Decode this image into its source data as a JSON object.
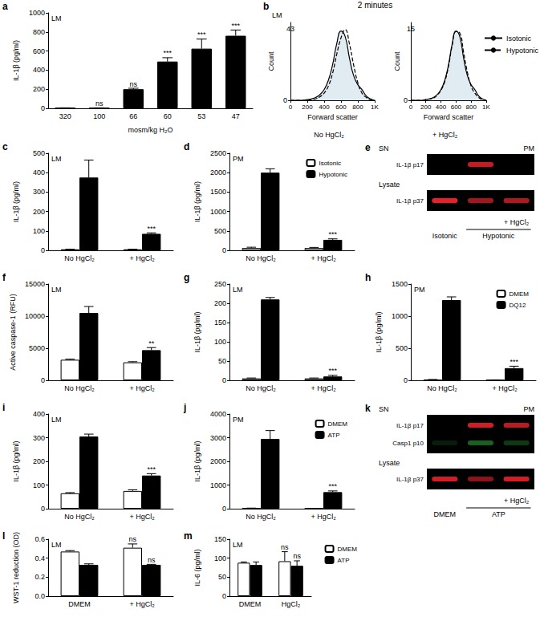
{
  "chart_data": [
    {
      "panel": "a",
      "type": "bar",
      "title": "LM",
      "xlabel": "mosm/kg H₂O",
      "ylabel": "IL-1β (pg/ml)",
      "categories": [
        "320",
        "100",
        "66",
        "60",
        "53",
        "47"
      ],
      "ylim": [
        0,
        1000
      ],
      "yticks": [
        0,
        200,
        400,
        600,
        800,
        1000
      ],
      "grid": false,
      "series": [
        {
          "color": "#000000",
          "values": [
            4,
            4,
            200,
            490,
            625,
            760
          ],
          "errors": [
            1,
            1,
            10,
            40,
            100,
            60
          ],
          "significance": [
            null,
            "ns",
            "ns",
            "***",
            "***",
            "***"
          ]
        }
      ]
    },
    {
      "panel": "b",
      "type": "line",
      "heading": "2 minutes",
      "title": "LM",
      "subtitle": "No HgCl₂",
      "annotations": [
        "43"
      ],
      "xlabel": "Forward scatter",
      "ylabel": "Count",
      "x": [
        0,
        50,
        100,
        150,
        200,
        250,
        300,
        350,
        400,
        450,
        500,
        550,
        600,
        650,
        700,
        750,
        800,
        850,
        900,
        950,
        1000
      ],
      "xlim": [
        0,
        1000
      ],
      "xticks": [
        0,
        200,
        400,
        600,
        800,
        {
          "value": 1000,
          "label": "1K"
        }
      ],
      "ylim": [
        0,
        110
      ],
      "yticks": [
        0
      ],
      "grid": false,
      "series": [
        {
          "color": "#000000",
          "line_style": "solid",
          "values": [
            0,
            0,
            0,
            0,
            1,
            2,
            4,
            8,
            15,
            28,
            50,
            80,
            98,
            90,
            60,
            35,
            22,
            15,
            6,
            2,
            0
          ]
        },
        {
          "color": "#000000",
          "line_style": "dashed",
          "values": [
            0,
            0,
            0,
            0,
            0,
            1,
            2,
            5,
            10,
            20,
            38,
            65,
            88,
            100,
            80,
            50,
            25,
            10,
            4,
            1,
            0
          ]
        }
      ]
    },
    {
      "type": "line",
      "subtitle": "+ HgCl₂",
      "annotations": [
        "15"
      ],
      "xlabel": "Forward scatter",
      "ylabel": "Count",
      "x": [
        0,
        50,
        100,
        150,
        200,
        250,
        300,
        350,
        400,
        450,
        500,
        550,
        600,
        650,
        700,
        750,
        800,
        850,
        900,
        950,
        1000
      ],
      "xlim": [
        0,
        1000
      ],
      "xticks": [
        0,
        200,
        400,
        600,
        800,
        {
          "value": 1000,
          "label": "1K"
        }
      ],
      "ylim": [
        0,
        110
      ],
      "yticks": [
        0
      ],
      "grid": false,
      "legend": "right",
      "series": [
        {
          "name": "Isotonic",
          "color": "#000000",
          "line_style": "solid",
          "values": [
            0,
            0,
            0,
            0,
            1,
            2,
            4,
            8,
            15,
            28,
            50,
            80,
            98,
            90,
            60,
            35,
            22,
            15,
            6,
            2,
            0
          ]
        },
        {
          "name": "Hypotonic",
          "color": "#000000",
          "line_style": "dashed",
          "values": [
            0,
            0,
            0,
            0,
            1,
            2,
            3,
            7,
            14,
            26,
            48,
            78,
            97,
            95,
            68,
            40,
            20,
            10,
            4,
            1,
            0
          ]
        }
      ]
    },
    {
      "panel": "c",
      "type": "bar",
      "title": "LM",
      "ylabel": "IL-1β (pg/ml)",
      "categories": [
        "No HgCl₂",
        "+ HgCl₂"
      ],
      "ylim": [
        0,
        500
      ],
      "yticks": [
        0,
        100,
        200,
        300,
        400,
        500
      ],
      "grid": false,
      "series": [
        {
          "color": "#ffffff",
          "values": [
            5,
            5
          ],
          "errors": [
            1,
            1
          ]
        },
        {
          "color": "#000000",
          "values": [
            375,
            85
          ],
          "errors": [
            90,
            5
          ],
          "significance": [
            null,
            "***"
          ]
        }
      ]
    },
    {
      "panel": "d",
      "type": "bar",
      "title": "PM",
      "ylabel": "IL-1β (pg/ml)",
      "categories": [
        "No HgCl₂",
        "+ HgCl₂"
      ],
      "ylim": [
        0,
        2500
      ],
      "yticks": [
        0,
        500,
        1000,
        1500,
        2000,
        2500
      ],
      "grid": false,
      "legend": "upper right",
      "series": [
        {
          "name": "Isotonic",
          "color": "#ffffff",
          "values": [
            60,
            60
          ],
          "errors": [
            20,
            15
          ]
        },
        {
          "name": "Hypotonic",
          "color": "#000000",
          "values": [
            2000,
            270
          ],
          "errors": [
            100,
            25
          ],
          "significance": [
            null,
            "***"
          ]
        }
      ]
    },
    {
      "panel": "f",
      "type": "bar",
      "title": "LM",
      "ylabel": "Active caspase-1 (RFU)",
      "categories": [
        "No HgCl₂",
        "+ HgCl₂"
      ],
      "ylim": [
        0,
        15000
      ],
      "yticks": [
        0,
        5000,
        10000,
        15000
      ],
      "grid": false,
      "series": [
        {
          "color": "#ffffff",
          "values": [
            3200,
            2800
          ],
          "errors": [
            100,
            100
          ]
        },
        {
          "color": "#000000",
          "values": [
            10500,
            4700
          ],
          "errors": [
            1000,
            400
          ],
          "significance": [
            null,
            "**"
          ]
        }
      ]
    },
    {
      "panel": "g",
      "type": "bar",
      "title": "LM",
      "ylabel": "IL-1β (pg/ml)",
      "categories": [
        "No HgCl₂",
        "+ HgCl₂"
      ],
      "ylim": [
        0,
        250
      ],
      "yticks": [
        0,
        50,
        100,
        150,
        200,
        250
      ],
      "grid": false,
      "series": [
        {
          "color": "#ffffff",
          "values": [
            5,
            5
          ],
          "errors": [
            1,
            1
          ]
        },
        {
          "color": "#000000",
          "values": [
            210,
            10
          ],
          "errors": [
            5,
            3
          ],
          "significance": [
            null,
            "***"
          ]
        }
      ]
    },
    {
      "panel": "h",
      "type": "bar",
      "title": "PM",
      "ylabel": "IL-1β (pg/ml)",
      "categories": [
        "No HgCl₂",
        "+ HgCl₂"
      ],
      "ylim": [
        0,
        1500
      ],
      "yticks": [
        0,
        500,
        1000,
        1500
      ],
      "grid": false,
      "legend": "upper right",
      "series": [
        {
          "name": "DMEM",
          "color": "#ffffff",
          "values": [
            10,
            5
          ],
          "errors": [
            3,
            2
          ]
        },
        {
          "name": "DQ12",
          "color": "#000000",
          "values": [
            1250,
            190
          ],
          "errors": [
            50,
            30
          ],
          "significance": [
            null,
            "***"
          ]
        }
      ]
    },
    {
      "panel": "i",
      "type": "bar",
      "title": "LM",
      "ylabel": "IL-1β (pg/ml)",
      "categories": [
        "No HgCl₂",
        "+ HgCl₂"
      ],
      "ylim": [
        0,
        400
      ],
      "yticks": [
        0,
        100,
        200,
        300,
        400
      ],
      "grid": false,
      "series": [
        {
          "color": "#ffffff",
          "values": [
            65,
            75
          ],
          "errors": [
            3,
            5
          ]
        },
        {
          "color": "#000000",
          "values": [
            305,
            140
          ],
          "errors": [
            10,
            8
          ],
          "significance": [
            null,
            "***"
          ]
        }
      ]
    },
    {
      "panel": "j",
      "type": "bar",
      "title": "PM",
      "ylabel": "IL-1β (pg/ml)",
      "categories": [
        "No HgCl₂",
        "+ HgCl₂"
      ],
      "ylim": [
        0,
        4000
      ],
      "yticks": [
        0,
        1000,
        2000,
        3000,
        4000
      ],
      "grid": false,
      "legend": "upper right",
      "series": [
        {
          "name": "DMEM",
          "color": "#ffffff",
          "values": [
            20,
            10
          ],
          "errors": [
            5,
            3
          ]
        },
        {
          "name": "ATP",
          "color": "#000000",
          "values": [
            2950,
            700
          ],
          "errors": [
            350,
            50
          ],
          "significance": [
            null,
            "***"
          ]
        }
      ]
    },
    {
      "panel": "l",
      "type": "bar",
      "title": "LM",
      "ylabel": "WST-1 reduction (OD)",
      "categories": [
        "DMEM",
        "+ HgCl₂"
      ],
      "ylim": [
        0,
        0.6
      ],
      "yticks": [
        {
          "value": 0,
          "label": "0.0"
        },
        0.2,
        0.4,
        0.6
      ],
      "grid": false,
      "series": [
        {
          "color": "#ffffff",
          "values": [
            0.47,
            0.51
          ],
          "errors": [
            0.01,
            0.04
          ],
          "significance": [
            null,
            "ns"
          ]
        },
        {
          "color": "#000000",
          "values": [
            0.33,
            0.33
          ],
          "errors": [
            0.01,
            0.005
          ],
          "significance": [
            null,
            "ns"
          ]
        }
      ]
    },
    {
      "panel": "m",
      "type": "bar",
      "title": "LM",
      "ylabel": "IL-6 (pg/ml)",
      "categories": [
        "DMEM",
        "HgCl₂"
      ],
      "ylim": [
        0,
        150
      ],
      "yticks": [
        0,
        50,
        100,
        150
      ],
      "grid": false,
      "legend": "right",
      "series": [
        {
          "name": "DMEM",
          "color": "#ffffff",
          "values": [
            88,
            92
          ],
          "errors": [
            2,
            25
          ],
          "significance": [
            null,
            "ns"
          ]
        },
        {
          "name": "ATP",
          "color": "#000000",
          "values": [
            82,
            80
          ],
          "errors": [
            8,
            13
          ],
          "significance": [
            null,
            "ns"
          ]
        }
      ]
    }
  ],
  "blots": [
    {
      "panel": "e",
      "corner": "PM",
      "lanes": 3,
      "sections": [
        {
          "label": "SN",
          "rows": [
            {
              "label": "IL-1β p17",
              "color": "#e8202a",
              "intensities": [
                0,
                0.85,
                0
              ]
            }
          ]
        },
        {
          "label": "Lysate",
          "rows": [
            {
              "label": "IL-1β p37",
              "color": "#e8202a",
              "intensities": [
                1,
                0.7,
                0.75
              ]
            }
          ]
        }
      ],
      "treatments": [
        [
          {
            "text": "+ HgCl₂",
            "from": 2,
            "to": 2
          }
        ],
        [
          {
            "text": "Isotonic",
            "from": 0,
            "to": 0
          },
          {
            "text": "Hypotonic",
            "from": 1,
            "to": 2,
            "bracket": true
          }
        ]
      ]
    },
    {
      "panel": "k",
      "corner": "PM",
      "lanes": 3,
      "sections": [
        {
          "label": "SN",
          "rows": [
            {
              "label": "IL-1β p17",
              "color": "#e8202a",
              "intensities": [
                0,
                0.9,
                0.8
              ]
            },
            {
              "label": "Casp1 p10",
              "color": "#30c040",
              "intensities": [
                0.15,
                0.5,
                0.3
              ]
            }
          ]
        },
        {
          "label": "Lysate",
          "rows": [
            {
              "label": "IL-1β p37",
              "color": "#e8202a",
              "intensities": [
                0.9,
                0.6,
                0.9
              ]
            }
          ]
        }
      ],
      "treatments": [
        [
          {
            "text": "+ HgCl₂",
            "from": 2,
            "to": 2
          }
        ],
        [
          {
            "text": "DMEM",
            "from": 0,
            "to": 0
          },
          {
            "text": "ATP",
            "from": 1,
            "to": 2,
            "bracket": true
          }
        ]
      ]
    }
  ]
}
